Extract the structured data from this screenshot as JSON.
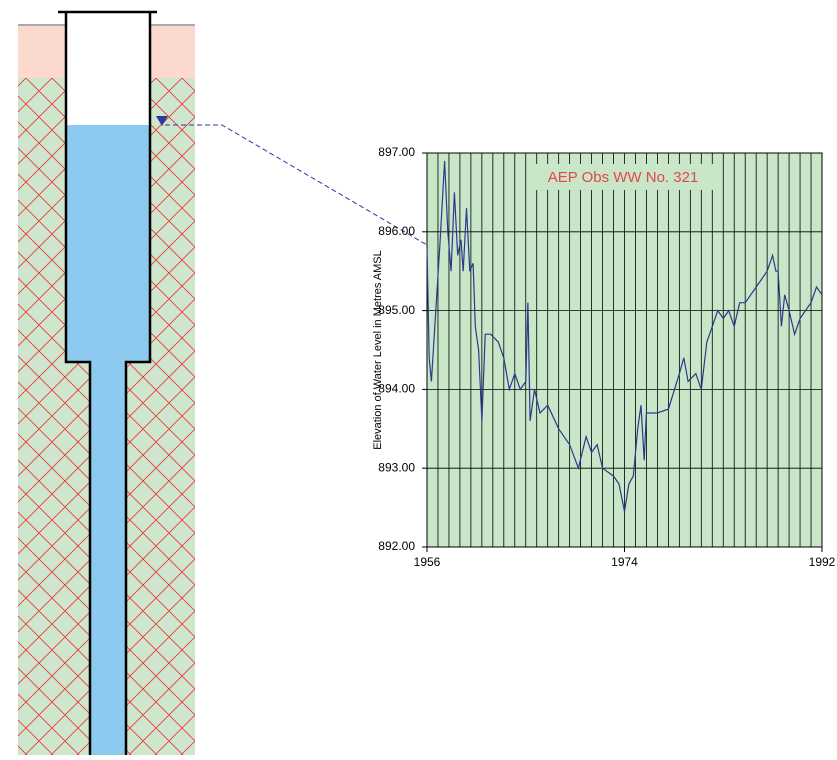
{
  "chart_data": {
    "type": "line",
    "title": "AEP Obs WW No. 321",
    "y_label": "Elevation of Water Level in Metres AMSL",
    "xlim": [
      1956,
      1992
    ],
    "xticks": [
      1956,
      1974,
      1992
    ],
    "ylim": [
      892,
      897
    ],
    "yticks": [
      {
        "value": 892,
        "label": "892.00"
      },
      {
        "value": 893,
        "label": "893.00"
      },
      {
        "value": 894,
        "label": "894.00"
      },
      {
        "value": 895,
        "label": "895.00"
      },
      {
        "value": 896,
        "label": "896.00"
      },
      {
        "value": 897,
        "label": "897.00"
      }
    ],
    "grid": true,
    "x_grid_step": 1,
    "plot_background": "#c9e6c9",
    "color": "#2a3a8c",
    "x": [
      1956.0,
      1956.2,
      1956.4,
      1956.8,
      1957.2,
      1957.6,
      1957.9,
      1958.2,
      1958.5,
      1958.8,
      1959.1,
      1959.3,
      1959.6,
      1959.9,
      1960.2,
      1960.4,
      1960.7,
      1961.0,
      1961.3,
      1961.8,
      1962.5,
      1963.0,
      1963.5,
      1964.0,
      1964.5,
      1965.0,
      1965.2,
      1965.4,
      1965.8,
      1966.3,
      1967.0,
      1968.0,
      1969.0,
      1969.8,
      1970.5,
      1971.0,
      1971.5,
      1972.0,
      1973.0,
      1973.5,
      1974.0,
      1974.4,
      1974.8,
      1975.2,
      1975.5,
      1975.8,
      1976.0,
      1977.0,
      1978.0,
      1979.0,
      1979.4,
      1979.8,
      1980.5,
      1981.0,
      1981.5,
      1982.0,
      1982.5,
      1983.0,
      1983.5,
      1984.0,
      1984.5,
      1985.0,
      1986.0,
      1987.0,
      1987.5,
      1987.8,
      1988.0,
      1988.3,
      1988.6,
      1989.0,
      1989.5,
      1990.0,
      1990.5,
      1991.0,
      1991.5,
      1992.0
    ],
    "values": [
      895.8,
      894.4,
      894.1,
      895.0,
      895.9,
      896.9,
      896.0,
      895.5,
      896.5,
      895.7,
      895.9,
      895.5,
      896.3,
      895.5,
      895.6,
      894.8,
      894.5,
      893.6,
      894.7,
      894.7,
      894.6,
      894.4,
      894.0,
      894.2,
      894.0,
      894.1,
      895.1,
      893.6,
      894.0,
      893.7,
      893.8,
      893.5,
      893.3,
      893.0,
      893.4,
      893.2,
      893.3,
      893.0,
      892.9,
      892.8,
      892.45,
      892.8,
      892.9,
      893.5,
      893.8,
      893.1,
      893.7,
      893.7,
      893.75,
      894.2,
      894.4,
      894.1,
      894.2,
      894.0,
      894.6,
      894.8,
      895.0,
      894.9,
      895.0,
      894.8,
      895.1,
      895.1,
      895.3,
      895.5,
      895.7,
      895.5,
      895.5,
      894.8,
      895.2,
      895.0,
      894.7,
      894.9,
      895.0,
      895.1,
      895.3,
      895.2
    ]
  }
}
